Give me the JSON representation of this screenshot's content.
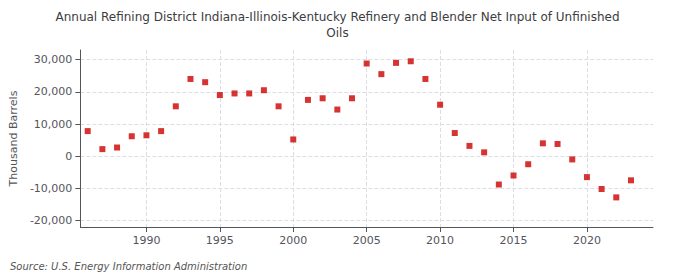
{
  "chart_data": {
    "type": "scatter",
    "title": "Annual Refining District Indiana-Illinois-Kentucky Refinery and Blender Net Input of Unfinished\nOils",
    "ylabel": "Thousand Barrels",
    "annotations": [
      "Source: U.S. Energy Information Administration"
    ],
    "x": [
      1986,
      1987,
      1988,
      1989,
      1990,
      1991,
      1992,
      1993,
      1994,
      1995,
      1996,
      1997,
      1998,
      1999,
      2000,
      2001,
      2002,
      2003,
      2004,
      2005,
      2006,
      2007,
      2008,
      2009,
      2010,
      2011,
      2012,
      2013,
      2014,
      2015,
      2016,
      2017,
      2018,
      2019,
      2020,
      2021,
      2022,
      2023
    ],
    "values": [
      7800,
      2200,
      2700,
      6200,
      6500,
      7800,
      15500,
      24000,
      23000,
      19000,
      19500,
      19500,
      20500,
      15500,
      5200,
      17500,
      18000,
      14500,
      18000,
      28800,
      25500,
      29000,
      29500,
      24000,
      16000,
      7200,
      3200,
      1200,
      -8800,
      -6000,
      -2500,
      4000,
      3800,
      -1000,
      -6500,
      -10200,
      -12800,
      -7500
    ],
    "color": "#cc0000",
    "marker": "square",
    "xlim": [
      1985.5,
      2024.5
    ],
    "xticks": [
      1990,
      1995,
      2000,
      2005,
      2010,
      2015,
      2020
    ],
    "ylim": [
      -22000,
      33000
    ],
    "yticks": [
      {
        "value": -20000,
        "label": "-20,000"
      },
      {
        "value": -10000,
        "label": "-10,000"
      },
      0,
      {
        "value": 10000,
        "label": "10,000"
      },
      {
        "value": 20000,
        "label": "20,000"
      },
      {
        "value": 30000,
        "label": "30,000"
      }
    ],
    "grid": true
  }
}
